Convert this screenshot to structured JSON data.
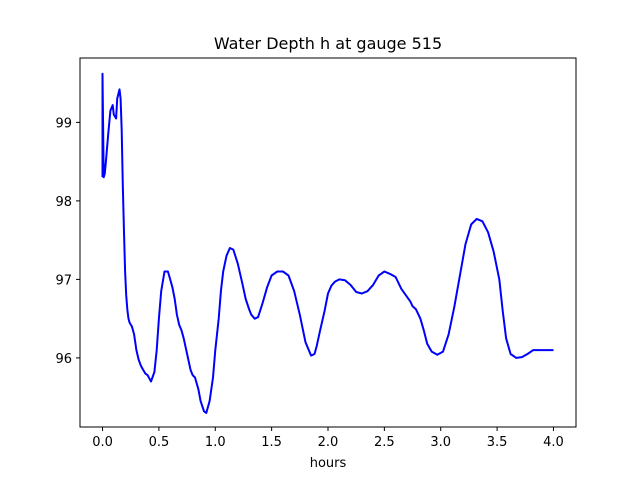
{
  "chart_data": {
    "type": "line",
    "title": "Water Depth h at gauge 515",
    "xlabel": "hours",
    "ylabel": "",
    "xlim": [
      -0.2,
      4.2
    ],
    "ylim": [
      95.12,
      99.82
    ],
    "xticks": [
      0.0,
      0.5,
      1.0,
      1.5,
      2.0,
      2.5,
      3.0,
      3.5,
      4.0
    ],
    "xtick_labels": [
      "0.0",
      "0.5",
      "1.0",
      "1.5",
      "2.0",
      "2.5",
      "3.0",
      "3.5",
      "4.0"
    ],
    "yticks": [
      96,
      97,
      98,
      99
    ],
    "ytick_labels": [
      "96",
      "97",
      "98",
      "99"
    ],
    "grid": false,
    "series": [
      {
        "color": "#0000ff",
        "x": [
          0.0,
          0.0,
          0.01,
          0.02,
          0.03,
          0.05,
          0.07,
          0.09,
          0.1,
          0.12,
          0.13,
          0.15,
          0.16,
          0.17,
          0.18,
          0.19,
          0.2,
          0.21,
          0.22,
          0.23,
          0.24,
          0.26,
          0.28,
          0.3,
          0.32,
          0.34,
          0.36,
          0.38,
          0.4,
          0.43,
          0.46,
          0.48,
          0.5,
          0.52,
          0.55,
          0.58,
          0.6,
          0.62,
          0.64,
          0.66,
          0.68,
          0.7,
          0.72,
          0.75,
          0.78,
          0.8,
          0.82,
          0.85,
          0.87,
          0.9,
          0.92,
          0.95,
          0.98,
          1.0,
          1.03,
          1.05,
          1.07,
          1.1,
          1.13,
          1.16,
          1.2,
          1.24,
          1.27,
          1.3,
          1.32,
          1.35,
          1.38,
          1.42,
          1.46,
          1.5,
          1.55,
          1.6,
          1.65,
          1.7,
          1.75,
          1.8,
          1.85,
          1.88,
          1.9,
          1.93,
          1.97,
          2.0,
          2.03,
          2.06,
          2.1,
          2.15,
          2.2,
          2.25,
          2.3,
          2.35,
          2.4,
          2.45,
          2.5,
          2.55,
          2.6,
          2.65,
          2.7,
          2.73,
          2.75,
          2.78,
          2.82,
          2.85,
          2.88,
          2.92,
          2.97,
          3.02,
          3.07,
          3.12,
          3.17,
          3.22,
          3.27,
          3.32,
          3.37,
          3.42,
          3.47,
          3.52,
          3.55,
          3.58,
          3.62,
          3.67,
          3.72,
          3.77,
          3.82,
          3.87,
          3.92,
          3.97,
          4.0
        ],
        "y": [
          98.3,
          99.62,
          98.3,
          98.35,
          98.5,
          98.85,
          99.15,
          99.22,
          99.1,
          99.05,
          99.3,
          99.42,
          99.3,
          98.9,
          98.2,
          97.6,
          97.1,
          96.8,
          96.62,
          96.5,
          96.45,
          96.4,
          96.3,
          96.1,
          95.98,
          95.9,
          95.85,
          95.8,
          95.78,
          95.7,
          95.82,
          96.1,
          96.5,
          96.85,
          97.1,
          97.1,
          97.0,
          96.9,
          96.75,
          96.55,
          96.42,
          96.35,
          96.25,
          96.05,
          95.85,
          95.78,
          95.75,
          95.6,
          95.45,
          95.32,
          95.3,
          95.45,
          95.75,
          96.1,
          96.5,
          96.85,
          97.1,
          97.3,
          97.4,
          97.38,
          97.2,
          96.95,
          96.75,
          96.62,
          96.55,
          96.5,
          96.52,
          96.7,
          96.9,
          97.05,
          97.1,
          97.1,
          97.05,
          96.85,
          96.55,
          96.2,
          96.03,
          96.05,
          96.15,
          96.35,
          96.6,
          96.82,
          96.92,
          96.97,
          97.0,
          96.99,
          96.93,
          96.84,
          96.82,
          96.85,
          96.93,
          97.05,
          97.1,
          97.07,
          97.03,
          96.88,
          96.78,
          96.72,
          96.66,
          96.62,
          96.5,
          96.35,
          96.18,
          96.08,
          96.04,
          96.08,
          96.3,
          96.65,
          97.05,
          97.45,
          97.7,
          97.77,
          97.74,
          97.6,
          97.35,
          97.0,
          96.6,
          96.25,
          96.05,
          96.0,
          96.01,
          96.05,
          96.1,
          96.1,
          96.1,
          96.1,
          96.1
        ]
      }
    ]
  }
}
